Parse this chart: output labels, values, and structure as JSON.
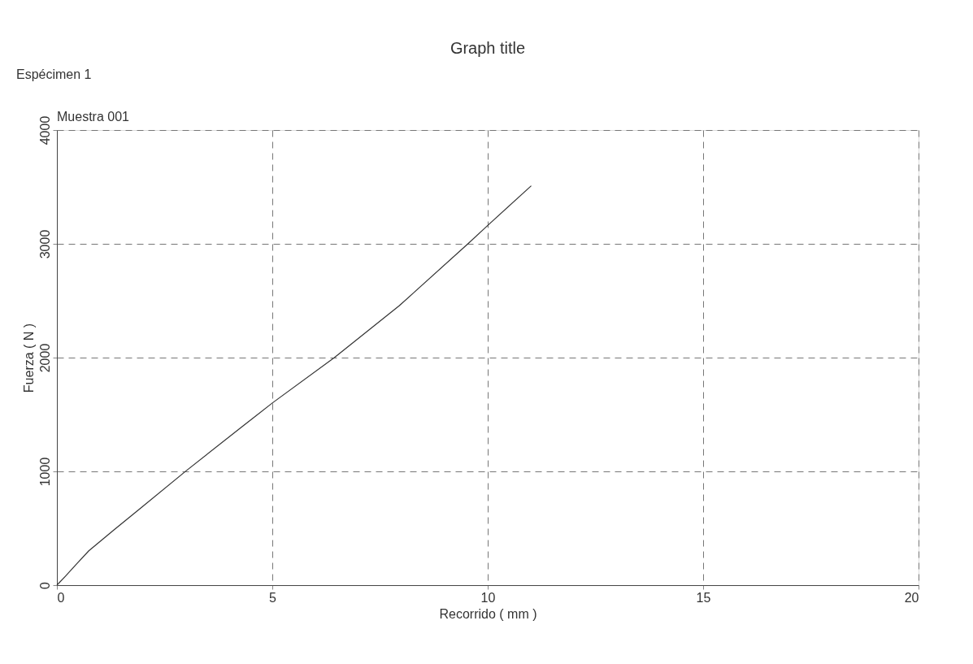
{
  "chart_data": {
    "type": "line",
    "title": "Graph title",
    "xlabel": "Recorrido ( mm )",
    "ylabel": "Fuerza ( N )",
    "annotations": [
      "Espécimen 1",
      "Muestra 001"
    ],
    "x": [
      0,
      0.2,
      0.44,
      0.74,
      1.33,
      1.92,
      3.01,
      4.28,
      5.0,
      6.44,
      7.95,
      9.54,
      10.0,
      11.01
    ],
    "series": [
      {
        "color": "#333333",
        "values": [
          0,
          80,
          180,
          302,
          487,
          670,
          1008,
          1387,
          1601,
          2000,
          2457,
          3000,
          3162,
          3510
        ]
      }
    ],
    "xlim": [
      0,
      20
    ],
    "xticks": [
      0,
      5,
      10,
      15,
      20
    ],
    "ylim": [
      0,
      4000
    ],
    "yticks": [
      0,
      1000,
      2000,
      3000,
      4000
    ],
    "grid": true,
    "line_style": "solid",
    "marker": "none"
  }
}
